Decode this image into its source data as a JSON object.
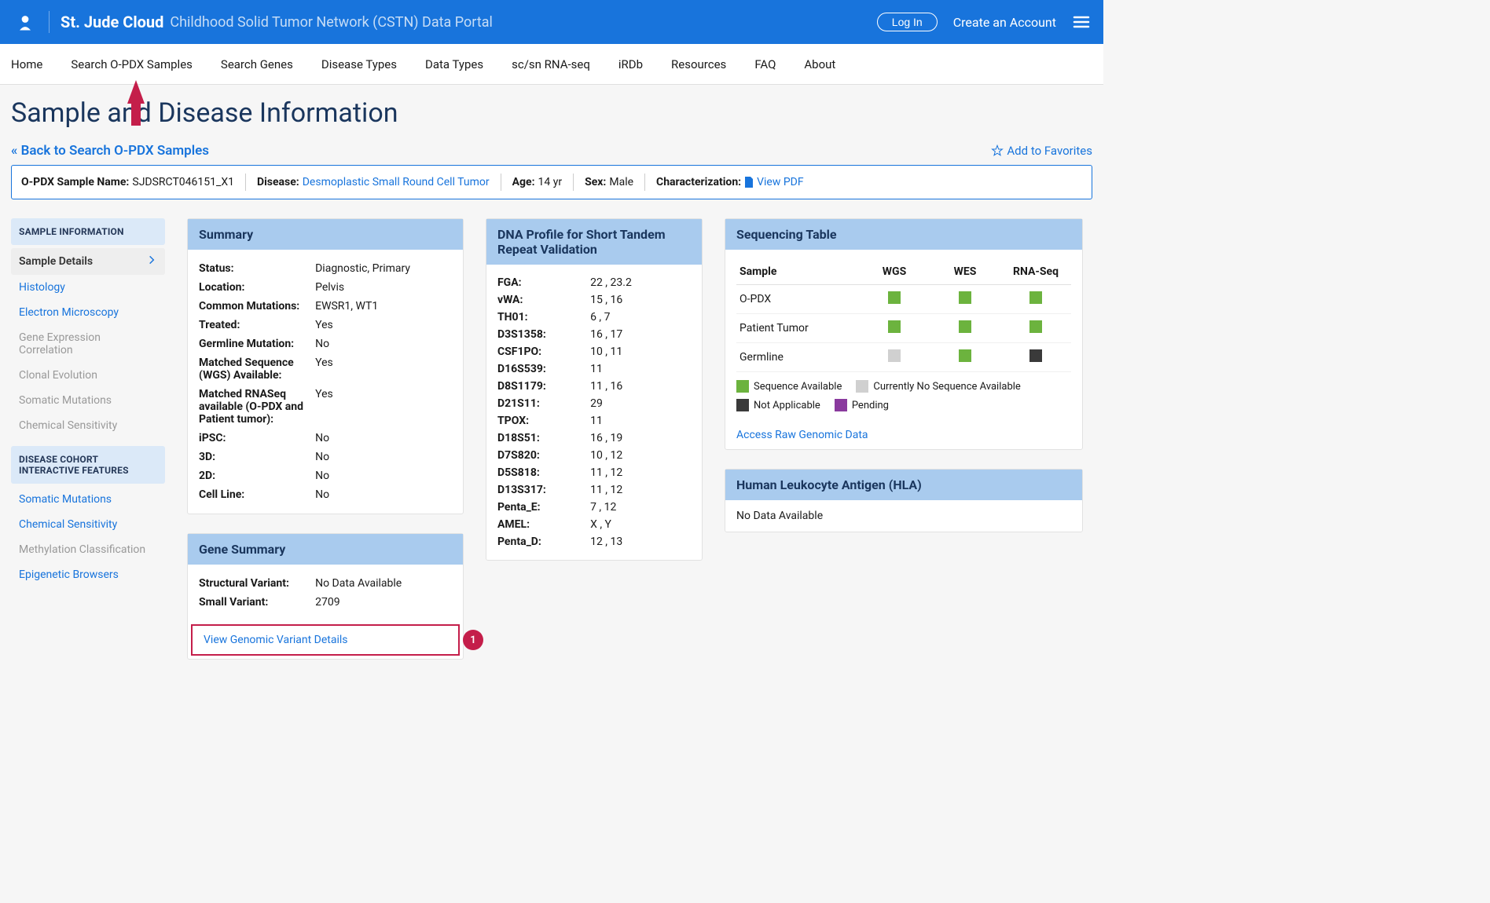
{
  "header": {
    "brand": "St. Jude Cloud",
    "subtitle": "Childhood Solid Tumor Network (CSTN) Data Portal",
    "login_label": "Log In",
    "create_label": "Create an Account"
  },
  "nav": {
    "items": [
      "Home",
      "Search O-PDX Samples",
      "Search Genes",
      "Disease Types",
      "Data Types",
      "sc/sn RNA-seq",
      "iRDb",
      "Resources",
      "FAQ",
      "About"
    ]
  },
  "page": {
    "title": "Sample and Disease Information",
    "back_link": "« Back to Search O-PDX Samples",
    "fav_link": "Add to Favorites"
  },
  "info_bar": {
    "sample_name_label": "O-PDX Sample Name:",
    "sample_name": "SJDSRCT046151_X1",
    "disease_label": "Disease:",
    "disease": "Desmoplastic Small Round Cell Tumor",
    "age_label": "Age:",
    "age": "14 yr",
    "sex_label": "Sex:",
    "sex": "Male",
    "char_label": "Characterization:",
    "char_link": "View PDF"
  },
  "sidebar": {
    "section1_title": "SAMPLE INFORMATION",
    "section1_items": [
      {
        "label": "Sample Details",
        "state": "active"
      },
      {
        "label": "Histology",
        "state": "link"
      },
      {
        "label": "Electron Microscopy",
        "state": "link"
      },
      {
        "label": "Gene Expression Correlation",
        "state": "disabled"
      },
      {
        "label": "Clonal Evolution",
        "state": "disabled"
      },
      {
        "label": "Somatic Mutations",
        "state": "disabled"
      },
      {
        "label": "Chemical Sensitivity",
        "state": "disabled"
      }
    ],
    "section2_title": "DISEASE COHORT INTERACTIVE FEATURES",
    "section2_items": [
      {
        "label": "Somatic Mutations",
        "state": "link"
      },
      {
        "label": "Chemical Sensitivity",
        "state": "link"
      },
      {
        "label": "Methylation Classification",
        "state": "disabled"
      },
      {
        "label": "Epigenetic Browsers",
        "state": "link"
      }
    ]
  },
  "summary": {
    "title": "Summary",
    "rows": [
      {
        "k": "Status:",
        "v": "Diagnostic, Primary"
      },
      {
        "k": "Location:",
        "v": "Pelvis"
      },
      {
        "k": "Common Mutations:",
        "v": "EWSR1, WT1"
      },
      {
        "k": "Treated:",
        "v": "Yes"
      },
      {
        "k": "Germline Mutation:",
        "v": "No"
      },
      {
        "k": "Matched Sequence (WGS) Available:",
        "v": "Yes"
      },
      {
        "k": "Matched RNASeq available (O-PDX and Patient tumor):",
        "v": "Yes"
      },
      {
        "k": "iPSC:",
        "v": "No"
      },
      {
        "k": "3D:",
        "v": "No"
      },
      {
        "k": "2D:",
        "v": "No"
      },
      {
        "k": "Cell Line:",
        "v": "No"
      }
    ]
  },
  "gene_summary": {
    "title": "Gene Summary",
    "rows": [
      {
        "k": "Structural Variant:",
        "v": "No Data Available"
      },
      {
        "k": "Small Variant:",
        "v": "2709"
      }
    ],
    "link_label": "View Genomic Variant Details",
    "badge": "1"
  },
  "dna": {
    "title": "DNA Profile for Short Tandem Repeat Validation",
    "rows": [
      {
        "k": "FGA:",
        "v": "22 , 23.2"
      },
      {
        "k": "vWA:",
        "v": "15 , 16"
      },
      {
        "k": "TH01:",
        "v": "6 , 7"
      },
      {
        "k": "D3S1358:",
        "v": "16 , 17"
      },
      {
        "k": "CSF1PO:",
        "v": "10 , 11"
      },
      {
        "k": "D16S539:",
        "v": "11"
      },
      {
        "k": "D8S1179:",
        "v": "11 , 16"
      },
      {
        "k": "D21S11:",
        "v": "29"
      },
      {
        "k": "TPOX:",
        "v": "11"
      },
      {
        "k": "D18S51:",
        "v": "16 , 19"
      },
      {
        "k": "D7S820:",
        "v": "10 , 12"
      },
      {
        "k": "D5S818:",
        "v": "11 , 12"
      },
      {
        "k": "D13S317:",
        "v": "11 , 12"
      },
      {
        "k": "Penta_E:",
        "v": "7 , 12"
      },
      {
        "k": "AMEL:",
        "v": "X , Y"
      },
      {
        "k": "Penta_D:",
        "v": "12 , 13"
      }
    ]
  },
  "seq": {
    "title": "Sequencing Table",
    "headers": [
      "Sample",
      "WGS",
      "WES",
      "RNA-Seq"
    ],
    "rows": [
      {
        "sample": "O-PDX",
        "cells": [
          "green",
          "green",
          "green"
        ]
      },
      {
        "sample": "Patient Tumor",
        "cells": [
          "green",
          "green",
          "green"
        ]
      },
      {
        "sample": "Germline",
        "cells": [
          "gray",
          "green",
          "dark"
        ]
      }
    ],
    "legend": [
      {
        "color": "green",
        "label": "Sequence Available"
      },
      {
        "color": "gray",
        "label": "Currently No Sequence Available"
      },
      {
        "color": "dark",
        "label": "Not Applicable"
      },
      {
        "color": "purple",
        "label": "Pending"
      }
    ],
    "access_link": "Access Raw Genomic Data"
  },
  "hla": {
    "title": "Human Leukocyte Antigen (HLA)",
    "body": "No Data Available"
  },
  "colors": {
    "primary": "#1874dc",
    "panel_header": "#a9cbee",
    "accent_red": "#c41e4a",
    "green": "#6cb33e"
  }
}
